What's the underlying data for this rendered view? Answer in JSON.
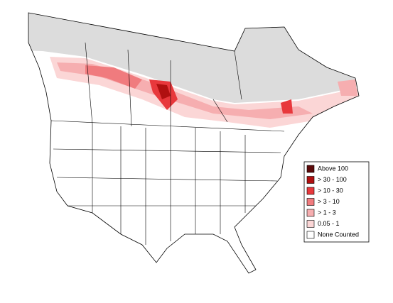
{
  "legend": {
    "items": [
      {
        "label": "Above 100",
        "color": "#5c0a0a"
      },
      {
        "label": "> 30 - 100",
        "color": "#b01010"
      },
      {
        "label": "> 10 - 30",
        "color": "#e8383c"
      },
      {
        "label": "> 3 - 10",
        "color": "#f07b7e"
      },
      {
        "label": "> 1 - 3",
        "color": "#f6aeb0"
      },
      {
        "label": "0.05 - 1",
        "color": "#fbd6d6"
      },
      {
        "label": "None Counted",
        "color": "#ffffff"
      }
    ]
  }
}
